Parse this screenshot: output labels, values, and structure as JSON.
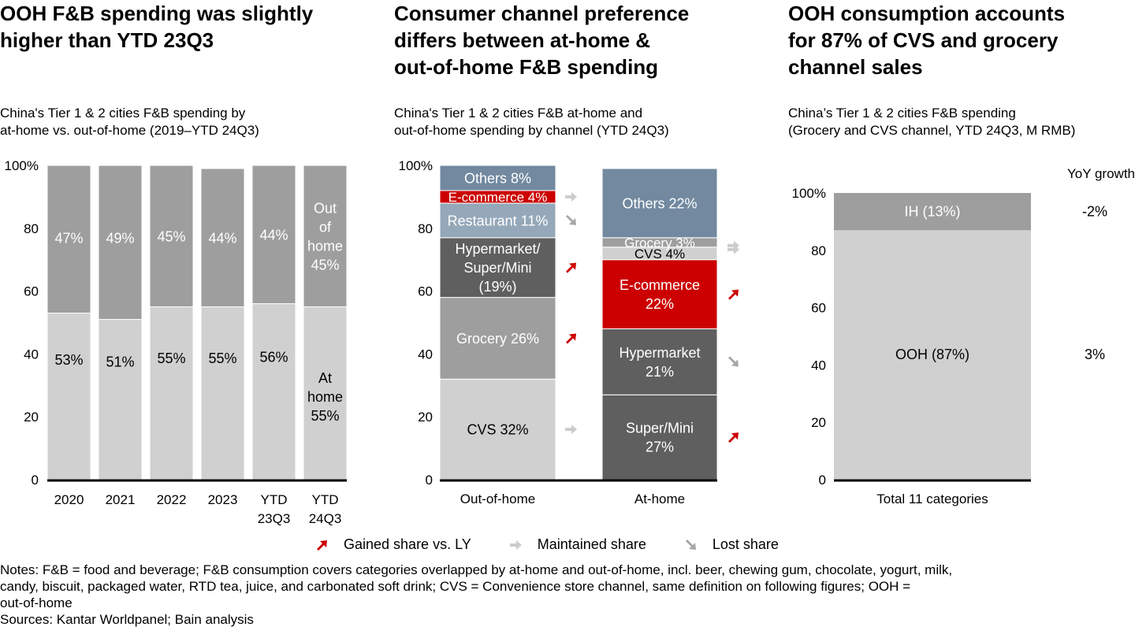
{
  "panels": [
    {
      "title_lines": [
        "OOH F&B spending was slightly",
        "higher than YTD 23Q3"
      ],
      "subtitle_lines": [
        "China's Tier 1 & 2 cities F&B spending by",
        "at-home vs. out-of-home (2019–YTD 24Q3)"
      ]
    },
    {
      "title_lines": [
        "Consumer channel preference",
        "differs between at-home &",
        "out-of-home F&B spending"
      ],
      "subtitle_lines": [
        "China's Tier 1 & 2 cities F&B at-home and",
        "out-of-home spending by channel (YTD 24Q3)"
      ]
    },
    {
      "title_lines": [
        "OOH consumption accounts",
        "for 87% of CVS and grocery",
        "channel sales"
      ],
      "subtitle_lines": [
        "China’s Tier 1 & 2 cities F&B spending",
        "(Grocery and CVS channel, YTD 24Q3, M RMB)"
      ]
    }
  ],
  "colors": {
    "at_home": "#d0d0d0",
    "out_of_home": "#9e9e9e",
    "others": "#7289a0",
    "ecommerce": "#cc0000",
    "restaurant": "#94a8b9",
    "hyper": "#5f5f5f",
    "grocery": "#9e9e9e",
    "cvs": "#d0d0d0",
    "gained": "#cc0000",
    "maintained": "#cccccc",
    "lost": "#a6a6a6"
  },
  "chart_data": [
    {
      "type": "bar",
      "stacked": true,
      "ylim": [
        0,
        100
      ],
      "yticks": [
        "0",
        "20",
        "40",
        "60",
        "80",
        "100%"
      ],
      "categories": [
        [
          "2020"
        ],
        [
          "2021"
        ],
        [
          "2022"
        ],
        [
          "2023"
        ],
        [
          "YTD",
          "23Q3"
        ],
        [
          "YTD",
          "24Q3"
        ]
      ],
      "series": [
        {
          "name": "At home",
          "values": [
            53,
            51,
            55,
            55,
            56,
            55
          ],
          "labels": [
            [
              "53%"
            ],
            [
              "51%"
            ],
            [
              "55%"
            ],
            [
              "55%"
            ],
            [
              "56%"
            ],
            [
              "At",
              "home",
              "55%"
            ]
          ],
          "color_key": "at_home",
          "text_color": "#000000"
        },
        {
          "name": "Out of home",
          "values": [
            47,
            49,
            45,
            44,
            44,
            45
          ],
          "labels": [
            [
              "47%"
            ],
            [
              "49%"
            ],
            [
              "45%"
            ],
            [
              "44%"
            ],
            [
              "44%"
            ],
            [
              "Out",
              "of",
              "home",
              "45%"
            ]
          ],
          "color_key": "out_of_home",
          "text_color": "#ffffff"
        }
      ]
    },
    {
      "type": "bar",
      "stacked": true,
      "ylim": [
        0,
        100
      ],
      "yticks": [
        "0",
        "20",
        "40",
        "60",
        "80",
        "100%"
      ],
      "categories": [
        "Out-of-home",
        "At-home"
      ],
      "stacks": [
        {
          "category": "Out-of-home",
          "segments": [
            {
              "name": "CVS",
              "value": 32,
              "label": [
                "CVS 32%"
              ],
              "color_key": "cvs",
              "text_color": "#000000",
              "trend": "maintained"
            },
            {
              "name": "Grocery",
              "value": 26,
              "label": [
                "Grocery 26%"
              ],
              "color_key": "grocery",
              "text_color": "#ffffff",
              "trend": "gained"
            },
            {
              "name": "Hypermarket/Super/Mini",
              "value": 19,
              "label": [
                "Hypermarket/",
                "Super/Mini",
                "(19%)"
              ],
              "color_key": "hyper",
              "text_color": "#ffffff",
              "trend": "gained"
            },
            {
              "name": "Restaurant",
              "value": 11,
              "label": [
                "Restaurant 11%"
              ],
              "color_key": "restaurant",
              "text_color": "#ffffff",
              "trend": "lost"
            },
            {
              "name": "E-commerce",
              "value": 4,
              "label": [
                "E-commerce 4%"
              ],
              "color_key": "ecommerce",
              "text_color": "#ffffff",
              "trend": "maintained"
            },
            {
              "name": "Others",
              "value": 8,
              "label": [
                "Others 8%"
              ],
              "color_key": "others",
              "text_color": "#ffffff",
              "trend": null
            }
          ]
        },
        {
          "category": "At-home",
          "segments": [
            {
              "name": "Super/Mini",
              "value": 27,
              "label": [
                "Super/Mini",
                "27%"
              ],
              "color_key": "hyper",
              "text_color": "#ffffff",
              "trend": "gained"
            },
            {
              "name": "Hypermarket",
              "value": 21,
              "label": [
                "Hypermarket",
                "21%"
              ],
              "color_key": "hyper",
              "text_color": "#ffffff",
              "trend": "lost"
            },
            {
              "name": "E-commerce",
              "value": 22,
              "label": [
                "E-commerce",
                "22%"
              ],
              "color_key": "ecommerce",
              "text_color": "#ffffff",
              "trend": "gained"
            },
            {
              "name": "CVS",
              "value": 4,
              "label": [
                "CVS 4%"
              ],
              "color_key": "cvs",
              "text_color": "#000000",
              "trend": "maintained"
            },
            {
              "name": "Grocery",
              "value": 3,
              "label": [
                "Grocery 3%"
              ],
              "color_key": "grocery",
              "text_color": "#ffffff",
              "trend": "maintained"
            },
            {
              "name": "Others",
              "value": 22,
              "label": [
                "Others 22%"
              ],
              "color_key": "others",
              "text_color": "#ffffff",
              "trend": null
            }
          ]
        }
      ]
    },
    {
      "type": "bar",
      "stacked": true,
      "ylim": [
        0,
        100
      ],
      "yticks": [
        "0",
        "20",
        "40",
        "60",
        "80",
        "100%"
      ],
      "categories": [
        "Total 11 categories"
      ],
      "yoy_header": "YoY growth",
      "segments": [
        {
          "name": "OOH",
          "value": 87,
          "label": "OOH (87%)",
          "color_key": "at_home",
          "text_color": "#000000",
          "yoy": "3%"
        },
        {
          "name": "IH",
          "value": 13,
          "label": "IH (13%)",
          "color_key": "out_of_home",
          "text_color": "#ffffff",
          "yoy": "-2%"
        }
      ]
    }
  ],
  "legend": [
    {
      "trend": "gained",
      "label": "Gained share vs. LY"
    },
    {
      "trend": "maintained",
      "label": "Maintained share"
    },
    {
      "trend": "lost",
      "label": "Lost share"
    }
  ],
  "notes": [
    "Notes: F&B = food and beverage; F&B consumption covers categories overlapped by at-home and out-of-home, incl. beer, chewing gum, chocolate, yogurt, milk,",
    "candy, biscuit, packaged water, RTD tea, juice, and carbonated soft drink; CVS = Convenience store channel, same definition on following figures; OOH =",
    "out-of-home",
    "Sources: Kantar Worldpanel; Bain analysis"
  ]
}
